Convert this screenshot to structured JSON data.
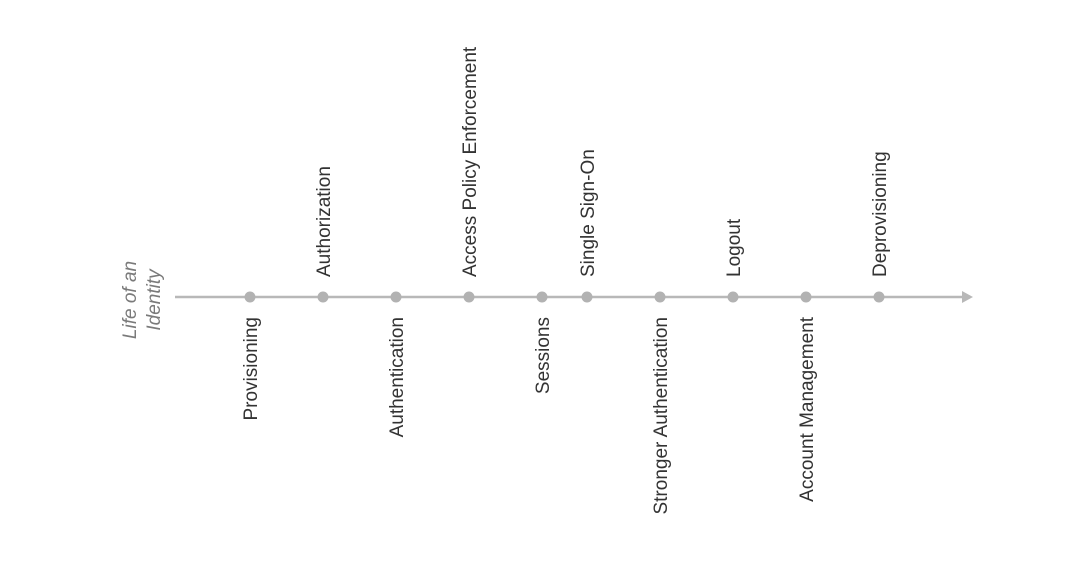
{
  "diagram": {
    "title_lines": [
      "Life of an",
      "Identity"
    ],
    "colors": {
      "line": "#b8b8b8",
      "marker": "#b2b2b2",
      "text": "#333333",
      "title": "#7a7a7a"
    },
    "stages": [
      {
        "label": "Provisioning",
        "side": "below"
      },
      {
        "label": "Authorization",
        "side": "above"
      },
      {
        "label": "Authentication",
        "side": "below"
      },
      {
        "label": "Access Policy Enforcement",
        "side": "above"
      },
      {
        "label": "Sessions",
        "side": "below"
      },
      {
        "label": "Single Sign-On",
        "side": "above"
      },
      {
        "label": "Stronger Authentication",
        "side": "below"
      },
      {
        "label": "Logout",
        "side": "above"
      },
      {
        "label": "Account Management",
        "side": "below"
      },
      {
        "label": "Deprovisioning",
        "side": "above"
      }
    ]
  }
}
